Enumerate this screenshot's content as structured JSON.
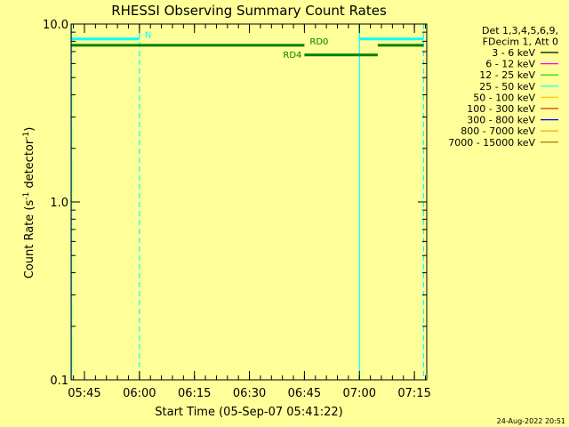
{
  "chart_data": {
    "type": "line",
    "title": "RHESSI Observing Summary Count Rates",
    "xlabel": "Start Time (05-Sep-07 05:41:22)",
    "ylabel_parts": [
      "Count Rate (s",
      "-1",
      " detector",
      "-1",
      ")"
    ],
    "yscale": "log",
    "ylim": [
      0.1,
      10.0
    ],
    "xlim_minutes": [
      0,
      97
    ],
    "x_start_time": "05:41:22",
    "yticks": [
      {
        "value": 0.1,
        "label": "0.1"
      },
      {
        "value": 1.0,
        "label": "1.0"
      },
      {
        "value": 10.0,
        "label": "10.0"
      }
    ],
    "xticks": [
      {
        "time": "05:45",
        "label": "05:45"
      },
      {
        "time": "06:00",
        "label": "06:00"
      },
      {
        "time": "06:15",
        "label": "06:15"
      },
      {
        "time": "06:30",
        "label": "06:30"
      },
      {
        "time": "06:45",
        "label": "06:45"
      },
      {
        "time": "07:00",
        "label": "07:00"
      },
      {
        "time": "07:15",
        "label": "07:15"
      }
    ],
    "x_minor_step_minutes": 3,
    "vertical_markers": [
      {
        "time": "05:41:30",
        "style": "solid",
        "color": "#00ffff"
      },
      {
        "time": "06:00:00",
        "style": "dashed",
        "color": "#00ffff"
      },
      {
        "time": "07:00:00",
        "style": "solid",
        "color": "#00ffff"
      },
      {
        "time": "07:17:30",
        "style": "dashed",
        "color": "#00ffff"
      }
    ],
    "flag_bars": [
      {
        "label": "N",
        "start": "05:41:30",
        "end": "06:00:00",
        "y": 8.25,
        "color": "#00ffff",
        "label_color": "#00ffff"
      },
      {
        "label": "",
        "start": "07:00:00",
        "end": "07:17:30",
        "y": 8.25,
        "color": "#00ffff",
        "label_color": ""
      },
      {
        "label": "RD0",
        "start": "05:41:30",
        "end": "06:45:00",
        "y": 7.6,
        "color": "#008000",
        "label_color": "#008000"
      },
      {
        "label": "",
        "start": "07:05:00",
        "end": "07:17:30",
        "y": 7.6,
        "color": "#008000",
        "label_color": ""
      },
      {
        "label": "RD4",
        "start": "06:45:00",
        "end": "07:05:00",
        "y": 6.7,
        "color": "#008000",
        "label_color": "#008000"
      }
    ],
    "legend": {
      "header": [
        "Det 1,3,4,5,6,9,",
        "FDecim 1, Att 0"
      ],
      "entries": [
        {
          "label": "3 - 6 keV",
          "color": "#000000"
        },
        {
          "label": "6 - 12 keV",
          "color": "#ff00ff"
        },
        {
          "label": "12 - 25 keV",
          "color": "#00cc00"
        },
        {
          "label": "25 - 50 keV",
          "color": "#00ffff"
        },
        {
          "label": "50 - 100 keV",
          "color": "#ffcc00"
        },
        {
          "label": "100 - 300 keV",
          "color": "#cc3300"
        },
        {
          "label": "300 - 800 keV",
          "color": "#0000ff"
        },
        {
          "label": "800 - 7000 keV",
          "color": "#ff9900"
        },
        {
          "label": "7000 - 15000 keV",
          "color": "#996600"
        }
      ]
    },
    "timestamp": "24-Aug-2022 20:51"
  }
}
